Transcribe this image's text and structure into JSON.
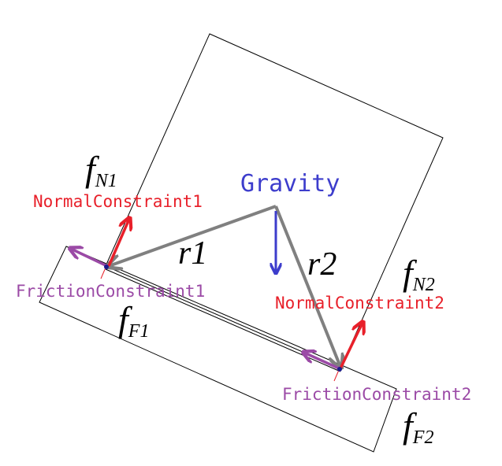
{
  "labels": {
    "gravity": "Gravity",
    "normal_constraint_1": "NormalConstraint1",
    "normal_constraint_2": "NormalConstraint2",
    "friction_constraint_1": "FrictionConstraint1",
    "friction_constraint_2": "FrictionConstraint2",
    "r1": "r1",
    "r2": "r2"
  },
  "symbols": {
    "fN1": {
      "base": "f",
      "sub": "N1"
    },
    "fN2": {
      "base": "f",
      "sub": "N2"
    },
    "fF1": {
      "base": "f",
      "sub": "F1"
    },
    "fF2": {
      "base": "f",
      "sub": "F2"
    }
  },
  "colors": {
    "gravity": "#3d3dcc",
    "normal": "#e8202a",
    "friction": "#9b4aa6",
    "lever_arm": "#808080",
    "outline": "#000000",
    "contact_point": "#1a1a8c"
  }
}
